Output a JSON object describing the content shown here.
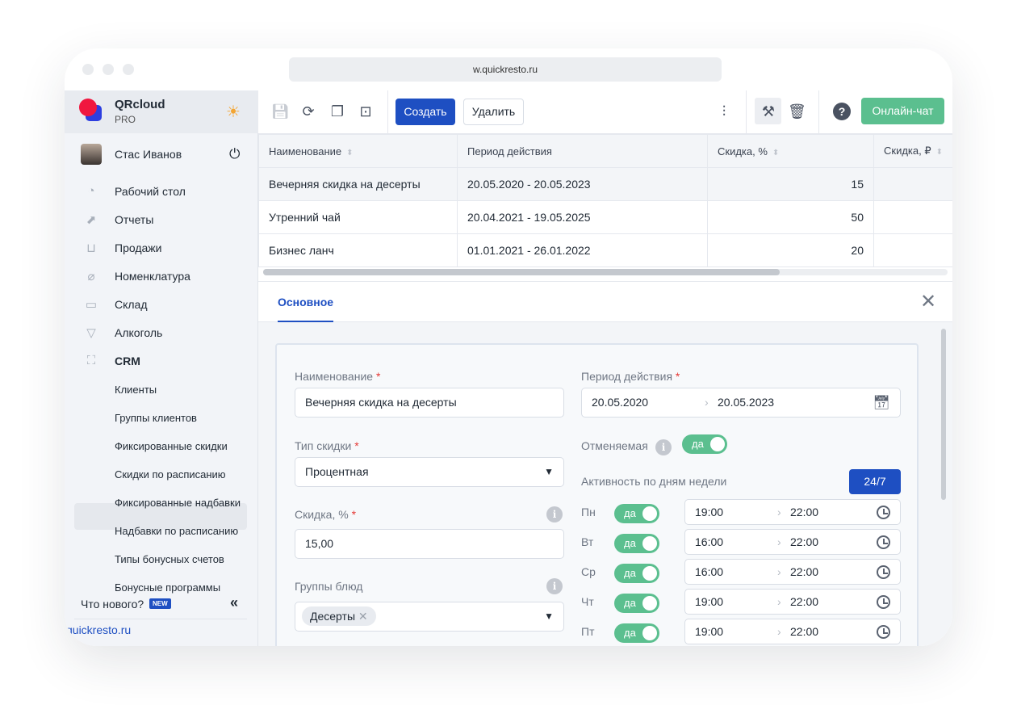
{
  "browser": {
    "url": "w.quickresto.ru"
  },
  "sidebar": {
    "brand": "QRcloud",
    "plan": "PRO",
    "user": "Стас Иванов",
    "items": [
      {
        "label": "Рабочий стол",
        "icon": "dashboard-icon"
      },
      {
        "label": "Отчеты",
        "icon": "chart-icon"
      },
      {
        "label": "Продажи",
        "icon": "basket-icon"
      },
      {
        "label": "Номенклатура",
        "icon": "tag-icon"
      },
      {
        "label": "Склад",
        "icon": "box-icon"
      },
      {
        "label": "Алкоголь",
        "icon": "cocktail-icon"
      },
      {
        "label": "CRM",
        "icon": "hierarchy-icon"
      }
    ],
    "crm_sub": [
      "Клиенты",
      "Группы клиентов",
      "Фиксированные скидки",
      "Скидки по расписанию",
      "Фиксированные надбавки",
      "Надбавки по расписанию",
      "Типы бонусных счетов",
      "Бонусные программы"
    ],
    "active_sub": "Скидки по расписанию",
    "whats_new": "Что нового?",
    "new_badge": "NEW",
    "footer_link": "quickresto.ru"
  },
  "toolbar": {
    "create": "Создать",
    "delete": "Удалить",
    "chat": "Онлайн-чат"
  },
  "table": {
    "headers": [
      "Наименование",
      "Период действия",
      "Скидка, %",
      "Скидка, ₽"
    ],
    "rows": [
      [
        "Вечерняя скидка на десерты",
        "20.05.2020 - 20.05.2023",
        "15",
        ""
      ],
      [
        "Утренний чай",
        "20.04.2021 - 19.05.2025",
        "50",
        ""
      ],
      [
        "Бизнес ланч",
        "01.01.2021 - 26.01.2022",
        "20",
        ""
      ]
    ]
  },
  "detail": {
    "tab": "Основное",
    "name_label": "Наименование",
    "name_value": "Вечерняя скидка на десерты",
    "period_label": "Период действия",
    "period_from": "20.05.2020",
    "period_to": "20.05.2023",
    "type_label": "Тип скидки",
    "type_value": "Процентная",
    "discount_label": "Скидка, %",
    "discount_value": "15,00",
    "groups_label": "Группы блюд",
    "groups_chip": "Десерты",
    "cancel_label": "Отменяемая",
    "cancel_value": "да",
    "activity_label": "Активность по дням недели",
    "btn_247": "24/7",
    "days": [
      {
        "day": "Пн",
        "on": "да",
        "from": "19:00",
        "to": "22:00"
      },
      {
        "day": "Вт",
        "on": "да",
        "from": "16:00",
        "to": "22:00"
      },
      {
        "day": "Ср",
        "on": "да",
        "from": "16:00",
        "to": "22:00"
      },
      {
        "day": "Чт",
        "on": "да",
        "from": "19:00",
        "to": "22:00"
      },
      {
        "day": "Пт",
        "on": "да",
        "from": "19:00",
        "to": "22:00"
      }
    ]
  },
  "colors": {
    "primary": "#1e4fc2",
    "success": "#5bbf8f",
    "sidebar": "#f2f4f8"
  }
}
